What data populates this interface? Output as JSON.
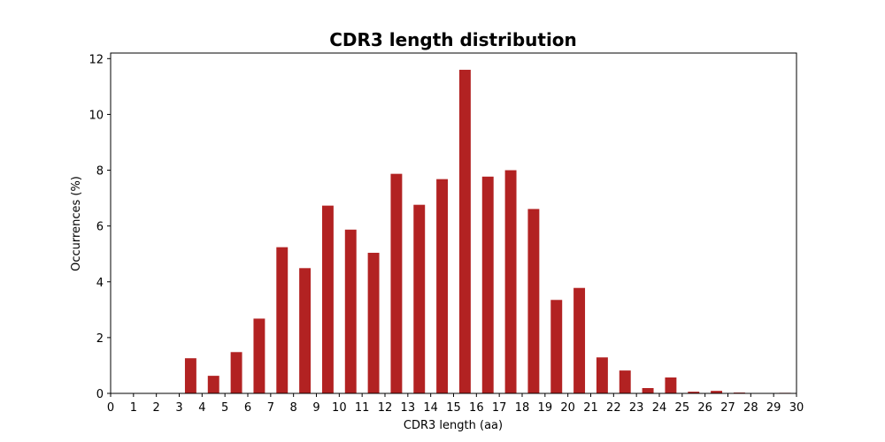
{
  "chart_data": {
    "type": "bar",
    "title": "CDR3 length distribution",
    "xlabel": "CDR3 length (aa)",
    "ylabel": "Occurrences (%)",
    "categories": [
      0,
      1,
      2,
      3,
      4,
      5,
      6,
      7,
      8,
      9,
      10,
      11,
      12,
      13,
      14,
      15,
      16,
      17,
      18,
      19,
      20,
      21,
      22,
      23,
      24,
      25,
      26,
      27,
      28,
      29,
      30
    ],
    "values": [
      0,
      0,
      0,
      1.26,
      0.63,
      1.48,
      2.68,
      5.24,
      4.49,
      6.73,
      5.87,
      5.04,
      7.87,
      6.76,
      7.68,
      11.6,
      7.77,
      8.0,
      6.61,
      3.35,
      3.78,
      1.29,
      0.82,
      0.19,
      0.57,
      0.06,
      0.09,
      0.03,
      0,
      0.02,
      0
    ],
    "xlim": [
      0,
      30
    ],
    "ylim": [
      0,
      12.2
    ],
    "yticks": [
      0,
      2,
      4,
      6,
      8,
      10,
      12
    ],
    "xticks": [
      0,
      1,
      2,
      3,
      4,
      5,
      6,
      7,
      8,
      9,
      10,
      11,
      12,
      13,
      14,
      15,
      16,
      17,
      18,
      19,
      20,
      21,
      22,
      23,
      24,
      25,
      26,
      27,
      28,
      29,
      30
    ],
    "bar_color": "#b22222",
    "grid": false,
    "legend": "none"
  }
}
